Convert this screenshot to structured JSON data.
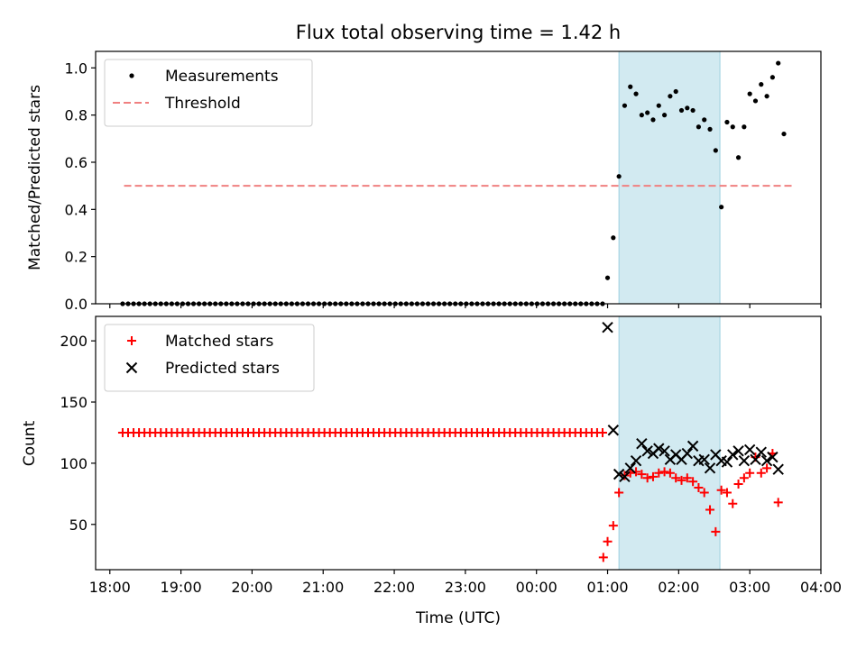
{
  "title": "Flux total observing time = 1.42 h",
  "xlabel": "Time (UTC)",
  "x_ticks": [
    {
      "label": "18:00",
      "t": -6.0
    },
    {
      "label": "19:00",
      "t": -5.0
    },
    {
      "label": "20:00",
      "t": -4.0
    },
    {
      "label": "21:00",
      "t": -3.0
    },
    {
      "label": "22:00",
      "t": -2.0
    },
    {
      "label": "23:00",
      "t": -1.0
    },
    {
      "label": "00:00",
      "t": 0.0
    },
    {
      "label": "01:00",
      "t": 1.0
    },
    {
      "label": "02:00",
      "t": 2.0
    },
    {
      "label": "03:00",
      "t": 3.0
    },
    {
      "label": "04:00",
      "t": 4.0
    }
  ],
  "colors": {
    "measurements": "#000000",
    "threshold": "#f08080",
    "matched": "#ff0000",
    "predicted": "#000000",
    "shade": "#add8e6"
  },
  "chart_data": [
    {
      "type": "scatter",
      "ylabel": "Matched/Predicted stars",
      "xlim": [
        -6.2,
        4.0
      ],
      "ylim": [
        0.0,
        1.07
      ],
      "yticks": [
        "0.0",
        "0.2",
        "0.4",
        "0.6",
        "0.8",
        "1.0"
      ],
      "legend_position": "upper-left",
      "shaded_region": [
        1.16,
        2.58
      ],
      "threshold": {
        "name": "Threshold",
        "y": 0.5,
        "x_range": [
          -5.8,
          3.6
        ]
      },
      "series": [
        {
          "name": "Measurements",
          "zero_run": {
            "from": -5.82,
            "to": 0.94,
            "step": 0.0767,
            "y": 0.0
          },
          "points": [
            [
              1.0,
              0.11
            ],
            [
              1.08,
              0.28
            ],
            [
              1.16,
              0.54
            ],
            [
              1.24,
              0.84
            ],
            [
              1.32,
              0.92
            ],
            [
              1.4,
              0.89
            ],
            [
              1.48,
              0.8
            ],
            [
              1.56,
              0.81
            ],
            [
              1.64,
              0.78
            ],
            [
              1.72,
              0.84
            ],
            [
              1.8,
              0.8
            ],
            [
              1.88,
              0.88
            ],
            [
              1.96,
              0.9
            ],
            [
              2.04,
              0.82
            ],
            [
              2.12,
              0.83
            ],
            [
              2.2,
              0.82
            ],
            [
              2.28,
              0.75
            ],
            [
              2.36,
              0.78
            ],
            [
              2.44,
              0.74
            ],
            [
              2.52,
              0.65
            ],
            [
              2.6,
              0.41
            ],
            [
              2.68,
              0.77
            ],
            [
              2.76,
              0.75
            ],
            [
              2.84,
              0.62
            ],
            [
              2.92,
              0.75
            ],
            [
              3.0,
              0.89
            ],
            [
              3.08,
              0.86
            ],
            [
              3.16,
              0.93
            ],
            [
              3.24,
              0.88
            ],
            [
              3.32,
              0.96
            ],
            [
              3.4,
              1.02
            ],
            [
              3.48,
              0.72
            ]
          ]
        }
      ]
    },
    {
      "type": "scatter",
      "ylabel": "Count",
      "xlim": [
        -6.2,
        4.0
      ],
      "ylim": [
        13,
        220
      ],
      "yticks": [
        "50",
        "100",
        "150",
        "200"
      ],
      "legend_position": "upper-left",
      "shaded_region": [
        1.16,
        2.58
      ],
      "series": [
        {
          "name": "Matched stars",
          "marker": "plus",
          "constant_run": {
            "from": -5.82,
            "to": 0.94,
            "step": 0.0767,
            "y": 125
          },
          "points": [
            [
              0.94,
              23
            ],
            [
              1.0,
              36
            ],
            [
              1.08,
              49
            ],
            [
              1.16,
              76
            ],
            [
              1.24,
              90
            ],
            [
              1.32,
              92
            ],
            [
              1.4,
              93
            ],
            [
              1.48,
              91
            ],
            [
              1.56,
              88
            ],
            [
              1.64,
              89
            ],
            [
              1.72,
              92
            ],
            [
              1.8,
              93
            ],
            [
              1.88,
              92
            ],
            [
              1.96,
              88
            ],
            [
              2.04,
              86
            ],
            [
              2.12,
              88
            ],
            [
              2.2,
              85
            ],
            [
              2.28,
              80
            ],
            [
              2.36,
              76
            ],
            [
              2.44,
              62
            ],
            [
              2.52,
              44
            ],
            [
              2.6,
              78
            ],
            [
              2.68,
              76
            ],
            [
              2.76,
              67
            ],
            [
              2.84,
              83
            ],
            [
              2.92,
              88
            ],
            [
              3.0,
              92
            ],
            [
              3.08,
              105
            ],
            [
              3.16,
              92
            ],
            [
              3.24,
              96
            ],
            [
              3.32,
              108
            ],
            [
              3.4,
              68
            ]
          ]
        },
        {
          "name": "Predicted stars",
          "marker": "x",
          "points": [
            [
              1.0,
              211
            ],
            [
              1.08,
              127
            ],
            [
              1.16,
              91
            ],
            [
              1.24,
              89
            ],
            [
              1.32,
              96
            ],
            [
              1.4,
              102
            ],
            [
              1.48,
              116
            ],
            [
              1.56,
              110
            ],
            [
              1.64,
              108
            ],
            [
              1.72,
              112
            ],
            [
              1.8,
              110
            ],
            [
              1.88,
              103
            ],
            [
              1.96,
              107
            ],
            [
              2.04,
              103
            ],
            [
              2.12,
              108
            ],
            [
              2.2,
              114
            ],
            [
              2.28,
              102
            ],
            [
              2.36,
              103
            ],
            [
              2.44,
              96
            ],
            [
              2.52,
              107
            ],
            [
              2.6,
              102
            ],
            [
              2.68,
              101
            ],
            [
              2.76,
              107
            ],
            [
              2.84,
              110
            ],
            [
              2.92,
              102
            ],
            [
              3.0,
              111
            ],
            [
              3.08,
              103
            ],
            [
              3.16,
              109
            ],
            [
              3.24,
              102
            ],
            [
              3.32,
              105
            ],
            [
              3.4,
              95
            ]
          ]
        }
      ]
    }
  ]
}
